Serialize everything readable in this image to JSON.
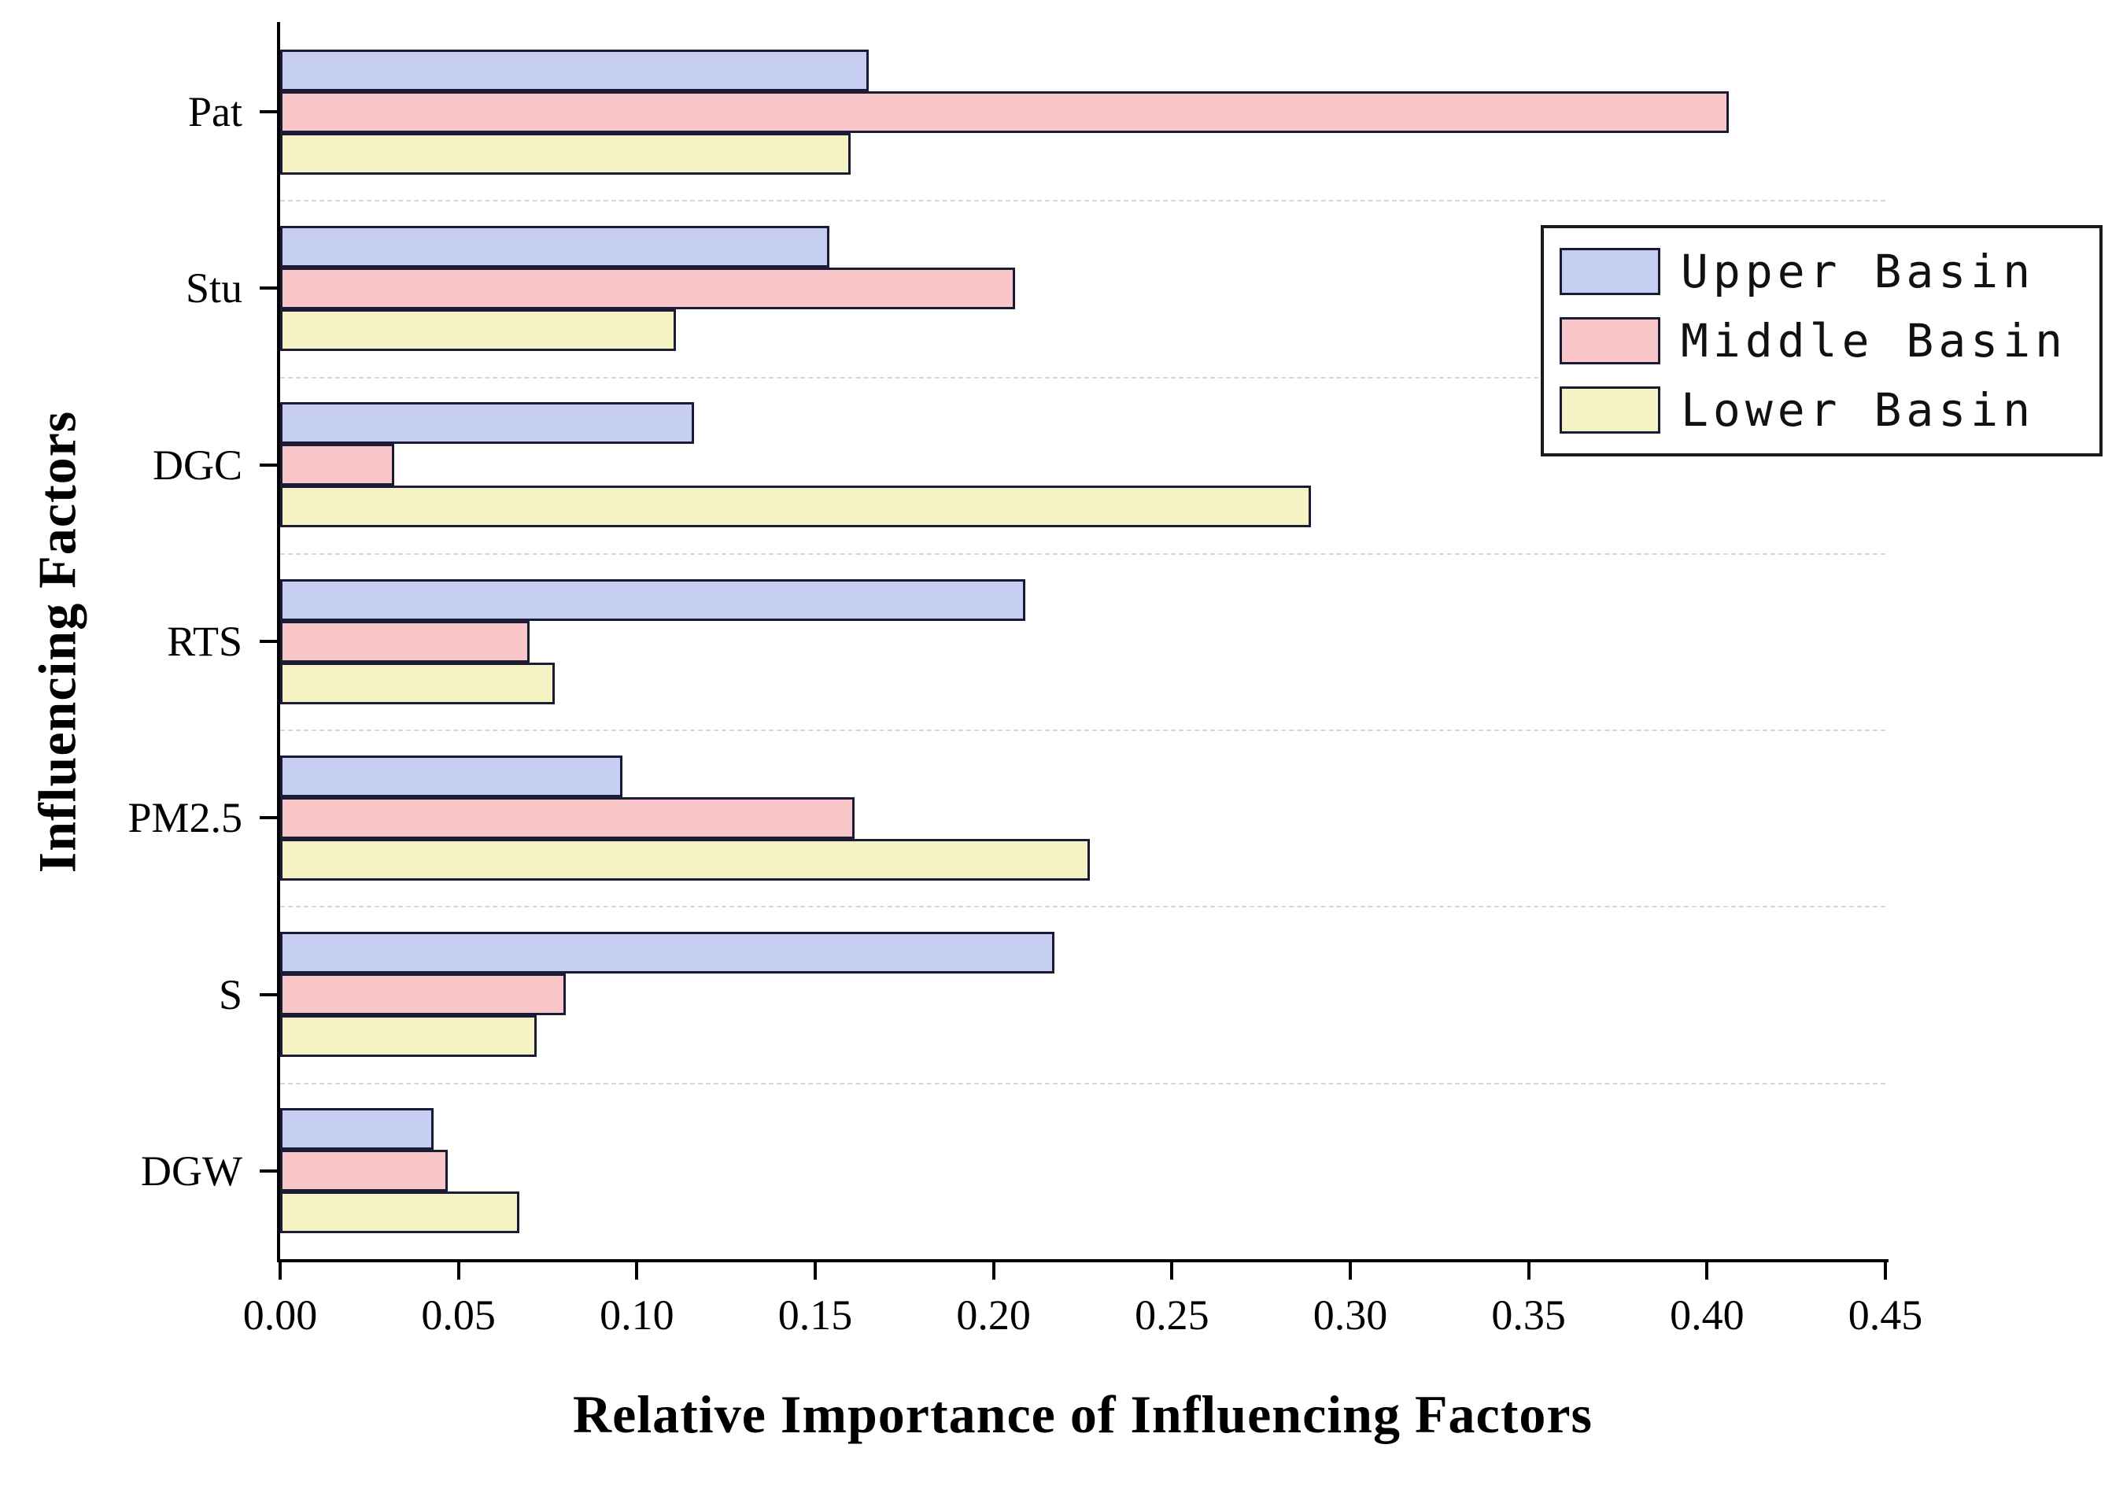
{
  "chart_data": {
    "type": "bar",
    "orientation": "horizontal",
    "title": "",
    "xlabel": "Relative Importance of Influencing Factors",
    "ylabel": "Influencing Factors",
    "xlim": [
      0,
      0.45
    ],
    "x_tick_values": [
      0,
      0.05,
      0.1,
      0.15,
      0.2,
      0.25,
      0.3,
      0.35,
      0.4,
      0.45
    ],
    "x_tick_labels": [
      "0.00",
      "0.05",
      "0.10",
      "0.15",
      "0.20",
      "0.25",
      "0.30",
      "0.35",
      "0.40",
      "0.45"
    ],
    "categories": [
      "Pat",
      "Stu",
      "DGC",
      "RTS",
      "PM2.5",
      "S",
      "DGW"
    ],
    "series": [
      {
        "name": "Upper Basin",
        "fill": "#c6cef2",
        "edge": "#1b1b35",
        "values": [
          0.165,
          0.154,
          0.116,
          0.209,
          0.096,
          0.217,
          0.043
        ]
      },
      {
        "name": "Middle Basin",
        "fill": "#f9c7c9",
        "edge": "#1b1b35",
        "values": [
          0.406,
          0.206,
          0.032,
          0.07,
          0.161,
          0.08,
          0.047
        ]
      },
      {
        "name": "Lower Basin",
        "fill": "#f5f2c4",
        "edge": "#1b1b35",
        "values": [
          0.16,
          0.111,
          0.289,
          0.077,
          0.227,
          0.072,
          0.067
        ]
      }
    ],
    "legend_position": "upper right",
    "grid": "dashed horizontal separators between category groups",
    "gridline_color": "#d6d6d6",
    "axis_color": "#000000",
    "background_color": "#ffffff"
  }
}
